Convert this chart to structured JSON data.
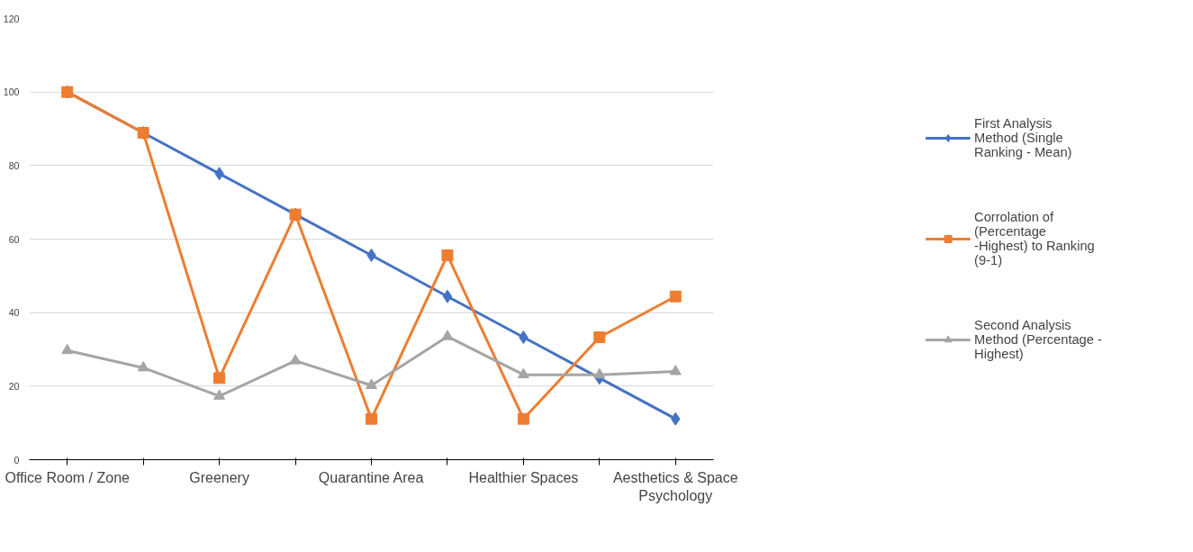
{
  "chart_data": {
    "type": "line",
    "categories": [
      "Office Room / Zone",
      null,
      "Greenery",
      null,
      "Quarantine Area",
      null,
      "Healthier Spaces",
      null,
      "Aesthetics & Space Psychology"
    ],
    "series": [
      {
        "name": "First Analysis Method (Single Ranking - Mean)",
        "color": "#4472c4",
        "marker": "diamond",
        "values": [
          100,
          88.9,
          77.8,
          66.7,
          55.6,
          44.4,
          33.3,
          22.2,
          11.1
        ]
      },
      {
        "name": "Corrolation of (Percentage -Highest) to Ranking (9-1)",
        "color": "#ed7d31",
        "marker": "square",
        "values": [
          100,
          88.9,
          22.2,
          66.7,
          11.1,
          55.6,
          11.1,
          33.3,
          44.4
        ]
      },
      {
        "name": "Second Analysis Method (Percentage - Highest)",
        "color": "#a5a5a5",
        "marker": "triangle",
        "values": [
          29.7,
          25,
          17.3,
          26.9,
          20.2,
          33.5,
          23.1,
          23.1,
          24
        ]
      }
    ],
    "ylim": [
      0,
      120
    ],
    "yticks": [
      0,
      20,
      40,
      60,
      80,
      100,
      120
    ],
    "grid": "y",
    "legend": "right"
  }
}
